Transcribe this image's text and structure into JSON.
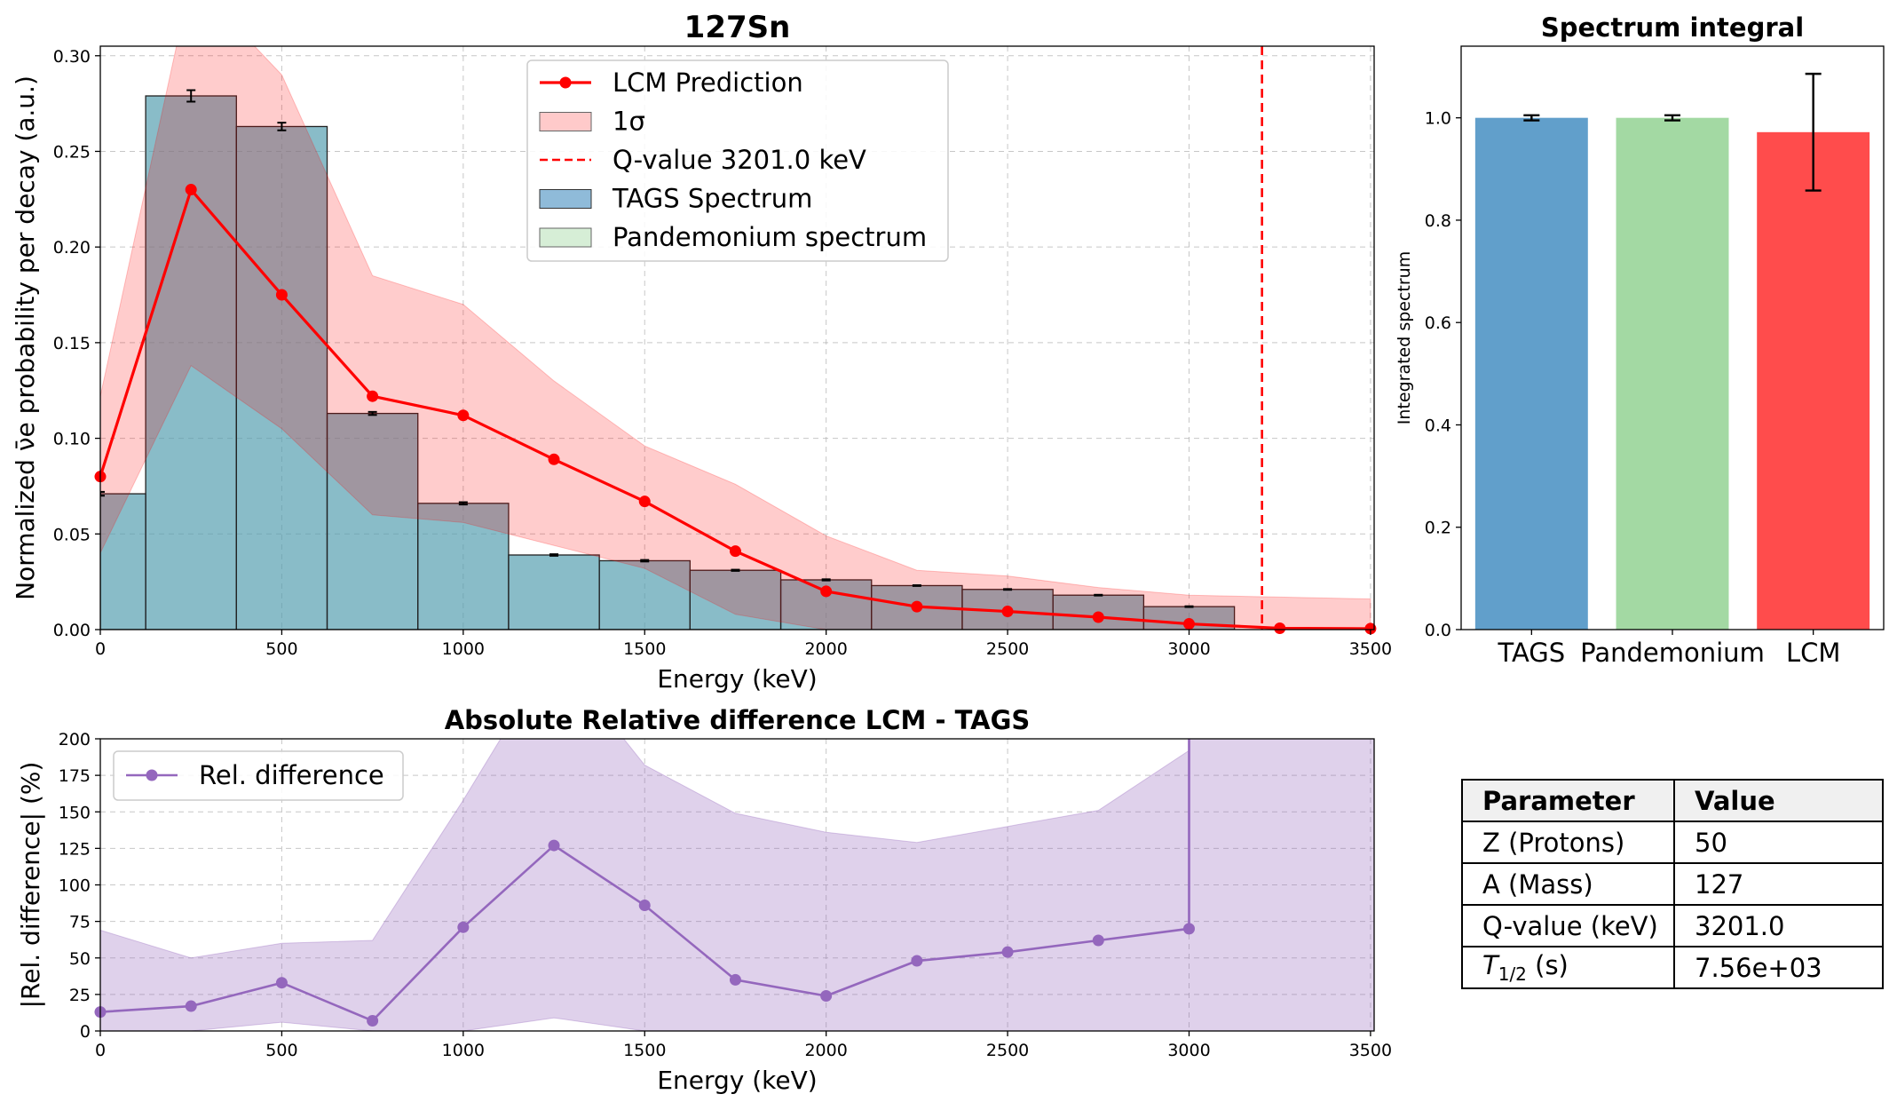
{
  "figure": {
    "main_title": "127Sn",
    "bottom_title": "Absolute Relative difference LCM - TAGS",
    "integral_title": "Spectrum integral"
  },
  "chart_data": [
    {
      "type": "bar",
      "id": "main",
      "title": "127Sn",
      "xlabel": "Energy (keV)",
      "ylabel": "Normalized ν̄e probability per decay (a.u.)",
      "xlim": [
        0,
        3510
      ],
      "ylim": [
        0,
        0.305
      ],
      "xticks": [
        0,
        500,
        1000,
        1500,
        2000,
        2500,
        3000,
        3500
      ],
      "yticks": [
        0.0,
        0.05,
        0.1,
        0.15,
        0.2,
        0.25,
        0.3
      ],
      "ytick_labels": [
        "0.00",
        "0.05",
        "0.10",
        "0.15",
        "0.20",
        "0.25",
        "0.30"
      ],
      "grid": true,
      "legend_position": "top-center",
      "legend": [
        {
          "label": "LCM Prediction",
          "kind": "line-marker",
          "color": "#ff0000"
        },
        {
          "label": "1σ",
          "kind": "patch",
          "color": "#ffb3b3"
        },
        {
          "label": "Q-value 3201.0 keV",
          "kind": "dashed",
          "color": "#ff0000"
        },
        {
          "label": "TAGS Spectrum",
          "kind": "patch",
          "color": "#1f77b4"
        },
        {
          "label": "Pandemonium spectrum",
          "kind": "patch",
          "color": "#a5d9a5"
        }
      ],
      "tags_bins": {
        "bin_centers": [
          0,
          250,
          500,
          750,
          1000,
          1250,
          1500,
          1750,
          2000,
          2250,
          2500,
          2750,
          3000
        ],
        "bin_width": 250,
        "values": [
          0.071,
          0.279,
          0.263,
          0.113,
          0.066,
          0.039,
          0.036,
          0.031,
          0.026,
          0.023,
          0.021,
          0.018,
          0.012
        ],
        "errors": [
          0.001,
          0.003,
          0.002,
          0.0008,
          0.0006,
          0.0004,
          0.0004,
          0.0003,
          0.0003,
          0.0002,
          0.0002,
          0.0002,
          0.0002
        ],
        "color": "#1f77b4"
      },
      "pandemonium_bins": {
        "bin_centers": [
          0,
          250,
          500,
          750,
          1000,
          1250,
          1500,
          1750,
          2000,
          2250,
          2500,
          2750,
          3000
        ],
        "bin_width": 250,
        "values": [
          0.071,
          0.279,
          0.263,
          0.113,
          0.066,
          0.039,
          0.036,
          0.031,
          0.026,
          0.023,
          0.021,
          0.018,
          0.012
        ],
        "color": "#a5d9a5"
      },
      "lcm": {
        "x": [
          0,
          250,
          500,
          750,
          1000,
          1250,
          1500,
          1750,
          2000,
          2250,
          2500,
          2750,
          3000,
          3250,
          3500
        ],
        "y": [
          0.08,
          0.23,
          0.175,
          0.122,
          0.112,
          0.089,
          0.067,
          0.041,
          0.02,
          0.012,
          0.0095,
          0.0065,
          0.003,
          0.0007,
          0.0005
        ],
        "band_upper": [
          0.122,
          0.34,
          0.29,
          0.185,
          0.17,
          0.13,
          0.096,
          0.076,
          0.049,
          0.031,
          0.028,
          0.022,
          0.018,
          0.017,
          0.016
        ],
        "band_lower": [
          0.04,
          0.138,
          0.105,
          0.06,
          0.056,
          0.044,
          0.032,
          0.008,
          0,
          0,
          0,
          0,
          0,
          0,
          0
        ],
        "color": "#ff0000"
      },
      "q_value": 3201.0
    },
    {
      "type": "line",
      "id": "reldiff",
      "title": "Absolute Relative difference LCM - TAGS",
      "xlabel": "Energy (keV)",
      "ylabel": "|Rel. difference| (%)",
      "xlim": [
        0,
        3510
      ],
      "ylim": [
        0,
        200
      ],
      "xticks": [
        0,
        500,
        1000,
        1500,
        2000,
        2500,
        3000,
        3500
      ],
      "yticks": [
        0,
        25,
        50,
        75,
        100,
        125,
        150,
        175,
        200
      ],
      "grid": true,
      "legend_position": "top-left",
      "series": [
        {
          "name": "Rel. difference",
          "x": [
            0,
            250,
            500,
            750,
            1000,
            1250,
            1500,
            1750,
            2000,
            2250,
            2500,
            2750,
            3000,
            3000
          ],
          "values": [
            13,
            17,
            33,
            7,
            71,
            127,
            86,
            35,
            24,
            48,
            54,
            62,
            70,
            205
          ],
          "band_upper": [
            69,
            50,
            60,
            62,
            158,
            260,
            182,
            149,
            136,
            129,
            140,
            151,
            192,
            205
          ],
          "band_lower": [
            0,
            0,
            6,
            0,
            0,
            9,
            0,
            0,
            0,
            0,
            0,
            0,
            0,
            0
          ],
          "color": "#9467bd"
        }
      ]
    },
    {
      "type": "bar",
      "id": "integral",
      "title": "Spectrum integral",
      "ylabel": "Integrated spectrum",
      "categories": [
        "TAGS",
        "Pandemonium",
        "LCM"
      ],
      "values": [
        1.0,
        1.0,
        0.972
      ],
      "errors": [
        0.005,
        0.005,
        0.114
      ],
      "colors": [
        "#619fcb",
        "#a3d9a3",
        "#ff4c4c"
      ],
      "ylim": [
        0,
        1.14
      ],
      "yticks": [
        0.0,
        0.2,
        0.4,
        0.6,
        0.8,
        1.0
      ],
      "ytick_labels": [
        "0.0",
        "0.2",
        "0.4",
        "0.6",
        "0.8",
        "1.0"
      ],
      "grid": false
    }
  ],
  "table": {
    "headers": [
      "Parameter",
      "Value"
    ],
    "rows": [
      [
        "Z (Protons)",
        "50"
      ],
      [
        "A (Mass)",
        "127"
      ],
      [
        "Q-value (keV)",
        "3201.0"
      ],
      [
        "T1/2 (s)",
        "7.56e+03"
      ]
    ]
  }
}
